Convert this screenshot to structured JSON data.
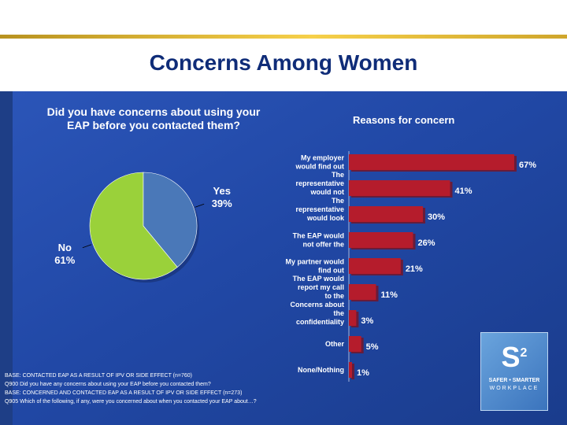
{
  "page": {
    "title": "Concerns Among Women"
  },
  "colors": {
    "accent_gold": "#e8be3a",
    "panel": "#2148a6",
    "pie_no": "#9ad13a",
    "pie_yes": "#4a78b8",
    "bar": "#b51c2c"
  },
  "chart_data": [
    {
      "type": "pie",
      "title": "Did you have concerns about using your EAP before you contacted them?",
      "slices": [
        {
          "name": "No",
          "value": 61,
          "label": "61%"
        },
        {
          "name": "Yes",
          "value": 39,
          "label": "39%"
        }
      ]
    },
    {
      "type": "bar",
      "orientation": "horizontal",
      "title": "Reasons for concern",
      "xlim": [
        0,
        70
      ],
      "categories": [
        "My employer would find out",
        "The representative would not",
        "The representative would look",
        "The EAP would not offer the",
        "My partner would find out",
        "The EAP would report my call to the",
        "Concerns about the confidentiality",
        "Other",
        "None/Nothing"
      ],
      "values": [
        67,
        41,
        30,
        26,
        21,
        11,
        3,
        5,
        1
      ],
      "value_labels": [
        "67%",
        "41%",
        "30%",
        "26%",
        "21%",
        "11%",
        "3%",
        "5%",
        "1%"
      ]
    }
  ],
  "footnotes": [
    "BASE: CONTACTED EAP AS A RESULT OF IPV OR SIDE EFFECT (n=760)",
    "Q900  Did you have any concerns about using your EAP before you contacted them?",
    "BASE: CONCERNED AND CONTACTED EAP AS A RESULT OF IPV OR SIDE EFFECT (n=273)",
    "Q905  Which of the following, if any, were you concerned about when you contacted your EAP about…?"
  ],
  "logo": {
    "mark": "S",
    "superscript": "2",
    "line1": "SAFER • SMARTER",
    "line2": "WORKPLACE"
  }
}
